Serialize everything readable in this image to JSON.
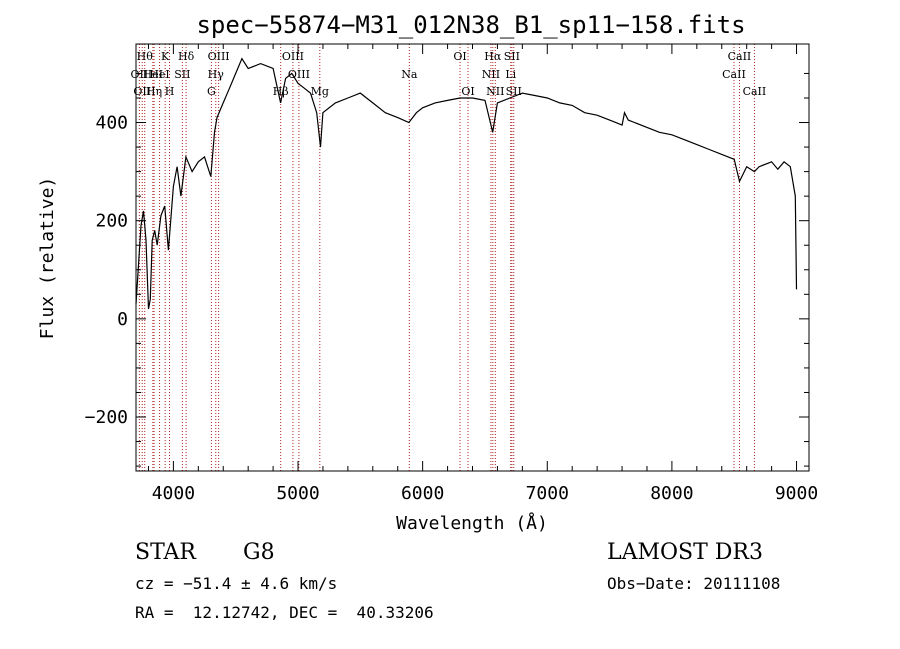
{
  "chart_data": {
    "type": "line",
    "title": "spec−55874−M31_012N38_B1_sp11−158.fits",
    "xlabel": "Wavelength (Å)",
    "ylabel": "Flux (relative)",
    "xlim": [
      3700,
      9100
    ],
    "ylim": [
      -310,
      560
    ],
    "xticks": [
      4000,
      5000,
      6000,
      7000,
      8000,
      9000
    ],
    "yticks": [
      -200,
      0,
      200,
      400
    ],
    "ytick_labels": [
      "−200",
      "0",
      "200",
      "400"
    ],
    "series": [
      {
        "name": "flux",
        "x": [
          3700,
          3720,
          3740,
          3760,
          3780,
          3800,
          3815,
          3830,
          3850,
          3870,
          3900,
          3930,
          3960,
          4000,
          4030,
          4060,
          4100,
          4150,
          4200,
          4250,
          4300,
          4330,
          4350,
          4400,
          4450,
          4500,
          4550,
          4600,
          4700,
          4800,
          4860,
          4900,
          4950,
          5000,
          5050,
          5100,
          5150,
          5180,
          5200,
          5300,
          5400,
          5500,
          5600,
          5700,
          5800,
          5890,
          5950,
          6000,
          6100,
          6200,
          6300,
          6400,
          6500,
          6562,
          6600,
          6700,
          6800,
          6900,
          7000,
          7100,
          7200,
          7300,
          7400,
          7500,
          7600,
          7620,
          7650,
          7700,
          7800,
          7900,
          8000,
          8100,
          8200,
          8300,
          8400,
          8500,
          8542,
          8600,
          8662,
          8700,
          8800,
          8850,
          8900,
          8950,
          8990,
          9000
        ],
        "values": [
          30,
          110,
          190,
          220,
          160,
          20,
          40,
          160,
          180,
          150,
          210,
          230,
          140,
          270,
          310,
          250,
          330,
          300,
          320,
          330,
          290,
          380,
          410,
          440,
          470,
          500,
          530,
          510,
          520,
          510,
          440,
          490,
          500,
          480,
          470,
          460,
          420,
          350,
          420,
          440,
          450,
          460,
          440,
          420,
          410,
          400,
          420,
          430,
          440,
          445,
          450,
          450,
          445,
          380,
          440,
          450,
          460,
          455,
          450,
          440,
          435,
          420,
          415,
          405,
          395,
          420,
          405,
          400,
          390,
          380,
          375,
          365,
          355,
          345,
          335,
          325,
          280,
          310,
          300,
          310,
          320,
          305,
          320,
          310,
          250,
          60
        ]
      }
    ],
    "lines": [
      {
        "x": 3727,
        "tier": 1,
        "label": "OII"
      },
      {
        "x": 3750,
        "tier": 2,
        "label": "OII"
      },
      {
        "x": 3770,
        "tier": 0,
        "label": "Hθ"
      },
      {
        "x": 3835,
        "tier": 1,
        "label": "HeI"
      },
      {
        "x": 3845,
        "tier": 2,
        "label": "Hη"
      },
      {
        "x": 3889,
        "tier": 1,
        "label": "HeI"
      },
      {
        "x": 3934,
        "tier": 0,
        "label": "K"
      },
      {
        "x": 3969,
        "tier": 2,
        "label": "H"
      },
      {
        "x": 4072,
        "tier": 1,
        "label": "SII"
      },
      {
        "x": 4102,
        "tier": 0,
        "label": "Hδ"
      },
      {
        "x": 4305,
        "tier": 2,
        "label": "G"
      },
      {
        "x": 4340,
        "tier": 1,
        "label": "Hγ"
      },
      {
        "x": 4363,
        "tier": 0,
        "label": "OIII"
      },
      {
        "x": 4861,
        "tier": 2,
        "label": "Hβ"
      },
      {
        "x": 4959,
        "tier": 0,
        "label": "OIII"
      },
      {
        "x": 5007,
        "tier": 1,
        "label": "OIII"
      },
      {
        "x": 5175,
        "tier": 2,
        "label": "Mg"
      },
      {
        "x": 5893,
        "tier": 1,
        "label": "Na"
      },
      {
        "x": 6300,
        "tier": 0,
        "label": "OI"
      },
      {
        "x": 6364,
        "tier": 2,
        "label": "OI"
      },
      {
        "x": 6548,
        "tier": 1,
        "label": "NII"
      },
      {
        "x": 6563,
        "tier": 0,
        "label": "Hα"
      },
      {
        "x": 6583,
        "tier": 2,
        "label": "NII"
      },
      {
        "x": 6707,
        "tier": 1,
        "label": "Li"
      },
      {
        "x": 6716,
        "tier": 0,
        "label": "SII"
      },
      {
        "x": 6731,
        "tier": 2,
        "label": "SII"
      },
      {
        "x": 8498,
        "tier": 1,
        "label": "CaII"
      },
      {
        "x": 8542,
        "tier": 0,
        "label": "CaII"
      },
      {
        "x": 8662,
        "tier": 2,
        "label": "CaII"
      }
    ]
  },
  "info": {
    "class_label": "STAR",
    "subclass": "G8",
    "survey": "LAMOST DR3",
    "redshift": "cz = −51.4 ± 4.6 km/s",
    "obs_date": "Obs−Date: 20111108",
    "coords": "RA =  12.12742, DEC =  40.33206"
  },
  "colors": {
    "spectrum": "#000000",
    "line_marker": "#b22222",
    "axis": "#000000"
  }
}
